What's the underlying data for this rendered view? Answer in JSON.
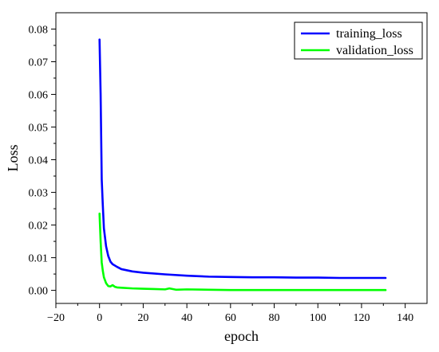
{
  "chart_data": {
    "type": "line",
    "title": "",
    "xlabel": "epoch",
    "ylabel": "Loss",
    "xlim": [
      -20,
      150
    ],
    "ylim": [
      -0.004,
      0.085
    ],
    "x_ticks": [
      -20,
      0,
      20,
      40,
      60,
      80,
      100,
      120,
      140
    ],
    "x_tick_labels": [
      "−20",
      "0",
      "20",
      "40",
      "60",
      "80",
      "100",
      "120",
      "140"
    ],
    "y_ticks": [
      0.0,
      0.01,
      0.02,
      0.03,
      0.04,
      0.05,
      0.06,
      0.07,
      0.08
    ],
    "y_tick_labels": [
      "0.00",
      "0.01",
      "0.02",
      "0.03",
      "0.04",
      "0.05",
      "0.06",
      "0.07",
      "0.08"
    ],
    "grid": false,
    "legend_position": "top-right",
    "series": [
      {
        "name": "training_loss",
        "color": "#0000ff",
        "x": [
          0,
          0.5,
          1,
          1.5,
          2,
          3,
          4,
          5,
          6,
          8,
          10,
          15,
          20,
          30,
          40,
          50,
          60,
          70,
          80,
          90,
          100,
          110,
          120,
          131
        ],
        "y": [
          0.0768,
          0.06,
          0.034,
          0.026,
          0.019,
          0.0135,
          0.0105,
          0.0088,
          0.008,
          0.0072,
          0.0065,
          0.0058,
          0.0054,
          0.0049,
          0.0045,
          0.0042,
          0.0041,
          0.004,
          0.004,
          0.0039,
          0.0039,
          0.0038,
          0.0038,
          0.0038
        ]
      },
      {
        "name": "validation_loss",
        "color": "#00ff00",
        "x": [
          0,
          0.5,
          1,
          1.5,
          2,
          3,
          4,
          5,
          6,
          7,
          8,
          10,
          15,
          20,
          25,
          30,
          32,
          35,
          40,
          50,
          60,
          70,
          80,
          90,
          100,
          110,
          120,
          131
        ],
        "y": [
          0.0235,
          0.015,
          0.0085,
          0.006,
          0.004,
          0.0022,
          0.0013,
          0.0012,
          0.0016,
          0.0011,
          0.0009,
          0.0008,
          0.0006,
          0.0005,
          0.0004,
          0.0003,
          0.0006,
          0.0002,
          0.0003,
          0.0002,
          0.0001,
          0.0001,
          0.0001,
          0.0001,
          0.0001,
          0.0001,
          0.0001,
          0.0001
        ]
      }
    ]
  }
}
